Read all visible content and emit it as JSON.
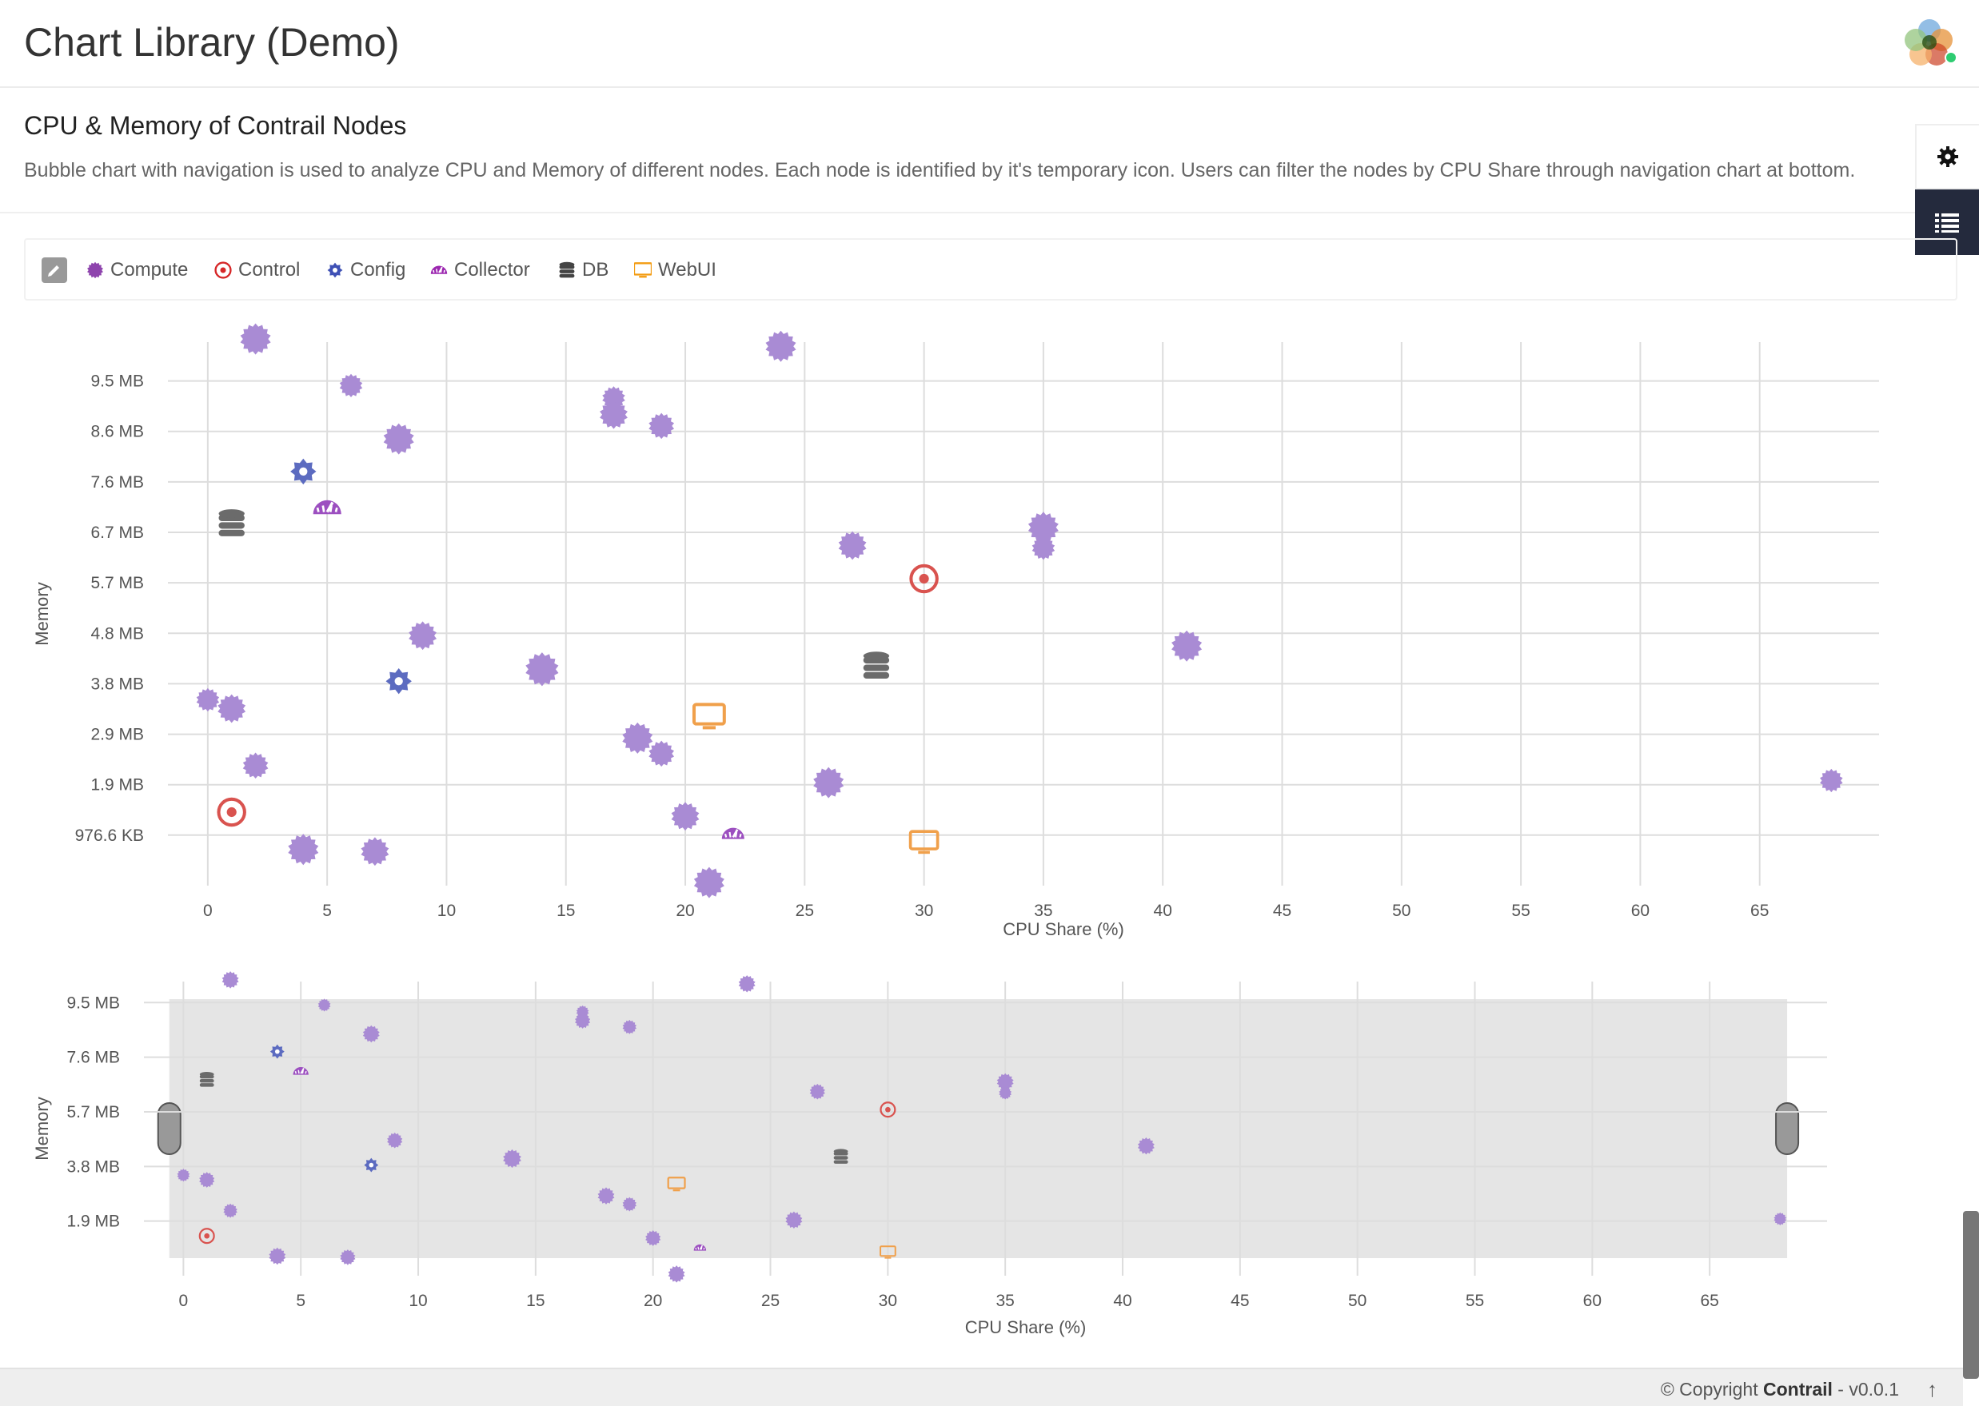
{
  "header": {
    "title": "Chart Library (Demo)",
    "logo": "contrail-logo-icon"
  },
  "section": {
    "title": "CPU & Memory of Contrail Nodes",
    "description": "Bubble chart with navigation is used to analyze CPU and Memory of different nodes. Each node is identified by it's temporary icon. Users can filter the nodes by CPU Share through navigation chart at bottom."
  },
  "side_tabs": [
    {
      "icon": "gear-icon"
    },
    {
      "icon": "list-icon",
      "active": true
    }
  ],
  "legend": {
    "edit_icon": "pencil-icon",
    "items": [
      {
        "label": "Compute",
        "icon": "compute-badge-icon",
        "color": "#8e44ad"
      },
      {
        "label": "Control",
        "icon": "bullseye-icon",
        "color": "#d62728"
      },
      {
        "label": "Config",
        "icon": "cog-icon",
        "color": "#3f51b5"
      },
      {
        "label": "Collector",
        "icon": "dashboard-icon",
        "color": "#9c27b0"
      },
      {
        "label": "DB",
        "icon": "database-icon",
        "color": "#444444"
      },
      {
        "label": "WebUI",
        "icon": "desktop-icon",
        "color": "#f39c12"
      }
    ]
  },
  "colors": {
    "compute": "#a98bd4",
    "control": "#d9534f",
    "config": "#5c6bc0",
    "collector": "#9c4fc0",
    "db": "#6b6b6b",
    "webui": "#f0a04b",
    "grid": "#dddddd",
    "nav_band": "#e5e5e5"
  },
  "chart_data": [
    {
      "type": "scatter",
      "title": "",
      "xlabel": "CPU Share (%)",
      "ylabel": "Memory",
      "xlim": [
        -1,
        70
      ],
      "ylim": [
        0,
        10500
      ],
      "x_ticks": [
        0,
        5,
        10,
        15,
        20,
        25,
        30,
        35,
        40,
        45,
        50,
        55,
        60,
        65
      ],
      "x_tick_labels": [
        "0",
        "5",
        "10",
        "15",
        "20",
        "25",
        "30",
        "35",
        "40",
        "45",
        "50",
        "55",
        "60",
        "65"
      ],
      "y_ticks": [
        976.6,
        1950,
        2925,
        3900,
        4875,
        5850,
        6825,
        7800,
        8775,
        9750
      ],
      "y_tick_labels": [
        "976.6 KB",
        "1.9 MB",
        "2.9 MB",
        "3.8 MB",
        "4.8 MB",
        "5.7 MB",
        "6.7 MB",
        "7.6 MB",
        "8.6 MB",
        "9.5 MB"
      ],
      "y_unit": "KB",
      "grid": true
    },
    {
      "type": "scatter",
      "title": "",
      "xlabel": "CPU Share (%)",
      "ylabel": "Memory",
      "xlim": [
        -1,
        70
      ],
      "ylim": [
        0,
        10500
      ],
      "x_ticks": [
        0,
        5,
        10,
        15,
        20,
        25,
        30,
        35,
        40,
        45,
        50,
        55,
        60,
        65
      ],
      "x_tick_labels": [
        "0",
        "5",
        "10",
        "15",
        "20",
        "25",
        "30",
        "35",
        "40",
        "45",
        "50",
        "55",
        "60",
        "65"
      ],
      "y_ticks": [
        1950,
        3900,
        5850,
        7800,
        9750
      ],
      "y_tick_labels": [
        "1.9 MB",
        "3.8 MB",
        "5.7 MB",
        "7.6 MB",
        "9.5 MB"
      ],
      "y_unit": "KB",
      "grid": true,
      "brush_range": [
        -0.6,
        68.3
      ]
    }
  ],
  "nodes": [
    {
      "type": "compute",
      "x": 2,
      "y": 10560,
      "size": 1.2
    },
    {
      "type": "compute",
      "x": 6,
      "y": 9660,
      "size": 0.9
    },
    {
      "type": "compute",
      "x": 17,
      "y": 9420,
      "size": 0.9
    },
    {
      "type": "compute",
      "x": 17,
      "y": 9100,
      "size": 1.1
    },
    {
      "type": "compute",
      "x": 19,
      "y": 8880,
      "size": 1.0
    },
    {
      "type": "compute",
      "x": 8,
      "y": 8630,
      "size": 1.2
    },
    {
      "type": "compute",
      "x": 24,
      "y": 10420,
      "size": 1.2
    },
    {
      "type": "config",
      "x": 4,
      "y": 8000,
      "size": 1.0
    },
    {
      "type": "collector",
      "x": 5,
      "y": 7300,
      "size": 1.0
    },
    {
      "type": "db",
      "x": 1,
      "y": 7000,
      "size": 1.0
    },
    {
      "type": "compute",
      "x": 27,
      "y": 6570,
      "size": 1.1
    },
    {
      "type": "compute",
      "x": 35,
      "y": 6920,
      "size": 1.2
    },
    {
      "type": "compute",
      "x": 35,
      "y": 6520,
      "size": 0.9
    },
    {
      "type": "control",
      "x": 30,
      "y": 5930,
      "size": 1.0
    },
    {
      "type": "compute",
      "x": 9,
      "y": 4830,
      "size": 1.1
    },
    {
      "type": "compute",
      "x": 41,
      "y": 4630,
      "size": 1.2
    },
    {
      "type": "db",
      "x": 28,
      "y": 4250,
      "size": 1.0
    },
    {
      "type": "compute",
      "x": 14,
      "y": 4180,
      "size": 1.3
    },
    {
      "type": "config",
      "x": 8,
      "y": 3950,
      "size": 1.0
    },
    {
      "type": "compute",
      "x": 0,
      "y": 3590,
      "size": 0.9
    },
    {
      "type": "compute",
      "x": 1,
      "y": 3420,
      "size": 1.1
    },
    {
      "type": "webui",
      "x": 21,
      "y": 3270,
      "size": 1.0
    },
    {
      "type": "compute",
      "x": 18,
      "y": 2850,
      "size": 1.2
    },
    {
      "type": "compute",
      "x": 19,
      "y": 2550,
      "size": 1.0
    },
    {
      "type": "compute",
      "x": 2,
      "y": 2320,
      "size": 1.0
    },
    {
      "type": "compute",
      "x": 26,
      "y": 1990,
      "size": 1.2
    },
    {
      "type": "compute",
      "x": 68,
      "y": 2030,
      "size": 0.9
    },
    {
      "type": "control",
      "x": 1,
      "y": 1420,
      "size": 1.0
    },
    {
      "type": "compute",
      "x": 20,
      "y": 1340,
      "size": 1.1
    },
    {
      "type": "collector",
      "x": 22,
      "y": 1000,
      "size": 0.8
    },
    {
      "type": "webui",
      "x": 30,
      "y": 840,
      "size": 0.9
    },
    {
      "type": "compute",
      "x": 4,
      "y": 700,
      "size": 1.2
    },
    {
      "type": "compute",
      "x": 7,
      "y": 660,
      "size": 1.1
    },
    {
      "type": "compute",
      "x": 21,
      "y": 60,
      "size": 1.2
    }
  ],
  "footer": {
    "copyright_prefix": "© Copyright",
    "brand": "Contrail",
    "version": "- v0.0.1",
    "scroll_top_icon": "arrow-up-icon"
  }
}
